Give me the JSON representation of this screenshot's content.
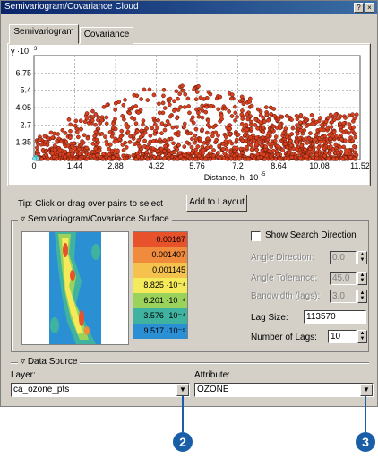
{
  "window": {
    "title": "Semivariogram/Covariance Cloud"
  },
  "tabs": [
    {
      "label": "Semivariogram"
    },
    {
      "label": "Covariance"
    }
  ],
  "chart_data": {
    "type": "scatter",
    "title": "",
    "ylabel": "γ ·10",
    "ylabel_exp": "3",
    "xlabel": "Distance, h ·10",
    "xlabel_exp": "-5",
    "xlim": [
      0,
      11.52
    ],
    "ylim": [
      0,
      8.1
    ],
    "xticks": [
      "0",
      "1.44",
      "2.88",
      "4.32",
      "5.76",
      "7.2",
      "8.64",
      "10.08",
      "11.52"
    ],
    "yticks": [
      "1.35",
      "2.7",
      "4.05",
      "5.4",
      "6.75"
    ],
    "grid": true
  },
  "tip": {
    "text": "Tip:   Click or drag over pairs to select"
  },
  "add_to_layout": "Add to Layout",
  "surface": {
    "legend": "Semivariogram/Covariance Surface",
    "scale": [
      {
        "value": "0.00167",
        "color": "#e8522a"
      },
      {
        "value": "0.001407",
        "color": "#f08a3c"
      },
      {
        "value": "0.001145",
        "color": "#f6c24e"
      },
      {
        "value": "8.825 ·10⁻⁴",
        "color": "#f4ea5a"
      },
      {
        "value": "6.201 ·10⁻⁴",
        "color": "#9ad25c"
      },
      {
        "value": "3.576 ·10⁻⁴",
        "color": "#3fb3a0"
      },
      {
        "value": "9.517 ·10⁻⁵",
        "color": "#2b8fd4"
      }
    ],
    "show_search_direction": "Show Search Direction",
    "angle_direction": {
      "label": "Angle Direction:",
      "value": "0.0"
    },
    "angle_tolerance": {
      "label": "Angle Tolerance:",
      "value": "45.0"
    },
    "bandwidth": {
      "label": "Bandwidth (lags):",
      "value": "3.0"
    },
    "lag_size": {
      "label": "Lag Size:",
      "value": "113570"
    },
    "num_lags": {
      "label": "Number of Lags:",
      "value": "10"
    }
  },
  "data_source": {
    "legend": "Data Source",
    "layer_label": "Layer:",
    "layer_value": "ca_ozone_pts",
    "attribute_label": "Attribute:",
    "attribute_value": "OZONE"
  },
  "callouts": [
    "2",
    "3"
  ]
}
